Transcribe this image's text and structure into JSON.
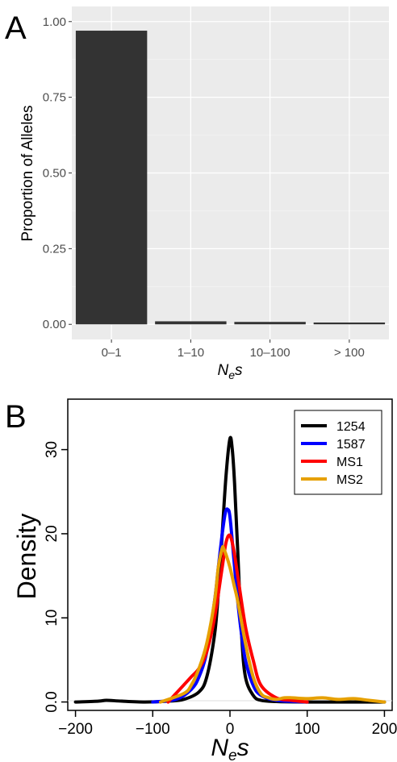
{
  "chart_data": [
    {
      "panel": "A",
      "type": "bar",
      "title": "",
      "ylabel": "Proportion of Alleles",
      "xlabel": {
        "main": "N",
        "sub": "e",
        "tail": "s"
      },
      "categories": [
        "0–1",
        "1–10",
        "10–100",
        "> 100"
      ],
      "values": [
        0.97,
        0.01,
        0.008,
        0.006
      ],
      "ylim": [
        -0.05,
        1.05
      ],
      "yticks": [
        0.0,
        0.25,
        0.5,
        0.75,
        1.0
      ],
      "ytick_labels": [
        "0.00",
        "0.25",
        "0.50",
        "0.75",
        "1.00"
      ],
      "grid": true,
      "bar_color": "#333333",
      "panel_bg": "#ebebeb"
    },
    {
      "panel": "B",
      "type": "line",
      "title": "",
      "ylabel": "Density",
      "xlabel": {
        "main": "N",
        "sub": "e",
        "tail": "s"
      },
      "xlim": [
        -210,
        210
      ],
      "ylim": [
        -1,
        36
      ],
      "xticks": [
        -200,
        -100,
        0,
        100,
        200
      ],
      "yticks": [
        0,
        10,
        20,
        30
      ],
      "ytick_labels": [
        "0.0",
        "10",
        "20",
        "30"
      ],
      "grid": false,
      "legend_position": "top-right",
      "series": [
        {
          "name": "1254",
          "color": "#000000",
          "x": [
            -200,
            -170,
            -160,
            -140,
            -110,
            -80,
            -60,
            -40,
            -30,
            -20,
            -15,
            -10,
            -5,
            0,
            3,
            6,
            10,
            15,
            20,
            30,
            40,
            60,
            100,
            150,
            200
          ],
          "y": [
            0,
            0.1,
            0.2,
            0.1,
            0,
            0.1,
            0.3,
            1.2,
            3,
            8,
            13,
            20,
            27,
            31.3,
            30,
            26,
            18,
            8,
            3,
            0.8,
            0.2,
            0.05,
            0,
            0,
            0
          ]
        },
        {
          "name": "1587",
          "color": "#0000ff",
          "x": [
            -100,
            -70,
            -50,
            -40,
            -30,
            -20,
            -15,
            -10,
            -6,
            -3,
            0,
            5,
            10,
            15,
            20,
            30,
            40,
            60,
            100
          ],
          "y": [
            0,
            0.3,
            1.5,
            3,
            6,
            12,
            16,
            20,
            22.5,
            22.9,
            22,
            17,
            12,
            8,
            5,
            2,
            0.8,
            0.2,
            0
          ]
        },
        {
          "name": "MS1",
          "color": "#ff0000",
          "x": [
            -80,
            -70,
            -60,
            -50,
            -40,
            -30,
            -20,
            -10,
            -5,
            0,
            5,
            10,
            20,
            30,
            40,
            60,
            80,
            100
          ],
          "y": [
            0,
            1,
            2,
            3,
            4,
            6,
            10,
            16,
            19,
            19.8,
            18,
            15,
            9,
            5,
            2,
            0.5,
            0.2,
            0
          ]
        },
        {
          "name": "MS2",
          "color": "#e6a000",
          "x": [
            -90,
            -60,
            -50,
            -40,
            -30,
            -20,
            -15,
            -10,
            -8,
            -5,
            0,
            5,
            10,
            20,
            30,
            40,
            50,
            60,
            70,
            80,
            100,
            120,
            140,
            160,
            180,
            200
          ],
          "y": [
            0,
            1,
            2,
            4,
            7,
            12,
            16,
            18.3,
            18.2,
            17.5,
            16,
            14,
            12,
            7,
            3,
            1,
            0.5,
            0.3,
            0.5,
            0.5,
            0.4,
            0.5,
            0.3,
            0.4,
            0.2,
            0
          ]
        }
      ]
    }
  ],
  "panel_letters": {
    "a": "A",
    "b": "B"
  }
}
